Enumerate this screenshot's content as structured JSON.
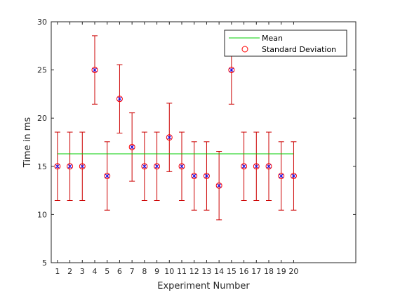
{
  "chart_data": {
    "type": "errorbar",
    "title": "",
    "xlabel": "Experiment Number",
    "ylabel": "Time in ms",
    "xlim": [
      0.5,
      25
    ],
    "ylim": [
      5,
      30
    ],
    "x_ticks": [
      1,
      2,
      3,
      4,
      5,
      6,
      7,
      8,
      9,
      10,
      11,
      12,
      13,
      14,
      15,
      16,
      17,
      18,
      19,
      20
    ],
    "y_ticks": [
      5,
      10,
      15,
      20,
      25,
      30
    ],
    "grid": false,
    "legend_position": "top-right",
    "x": [
      1,
      2,
      3,
      4,
      5,
      6,
      7,
      8,
      9,
      10,
      11,
      12,
      13,
      14,
      15,
      16,
      17,
      18,
      19,
      20
    ],
    "values": [
      15,
      15,
      15,
      25,
      14,
      22,
      17,
      15,
      15,
      18,
      15,
      14,
      14,
      13,
      25,
      15,
      15,
      15,
      14,
      14
    ],
    "error": 3.55,
    "mean": 16.3,
    "series": [
      {
        "name": "Mean",
        "kind": "line",
        "color": "#00cc00"
      },
      {
        "name": "Standard Deviation",
        "kind": "marker",
        "color": "#ff0000"
      }
    ],
    "errorbar_color": "#cc0000",
    "marker_x_color": "#0000ff"
  }
}
